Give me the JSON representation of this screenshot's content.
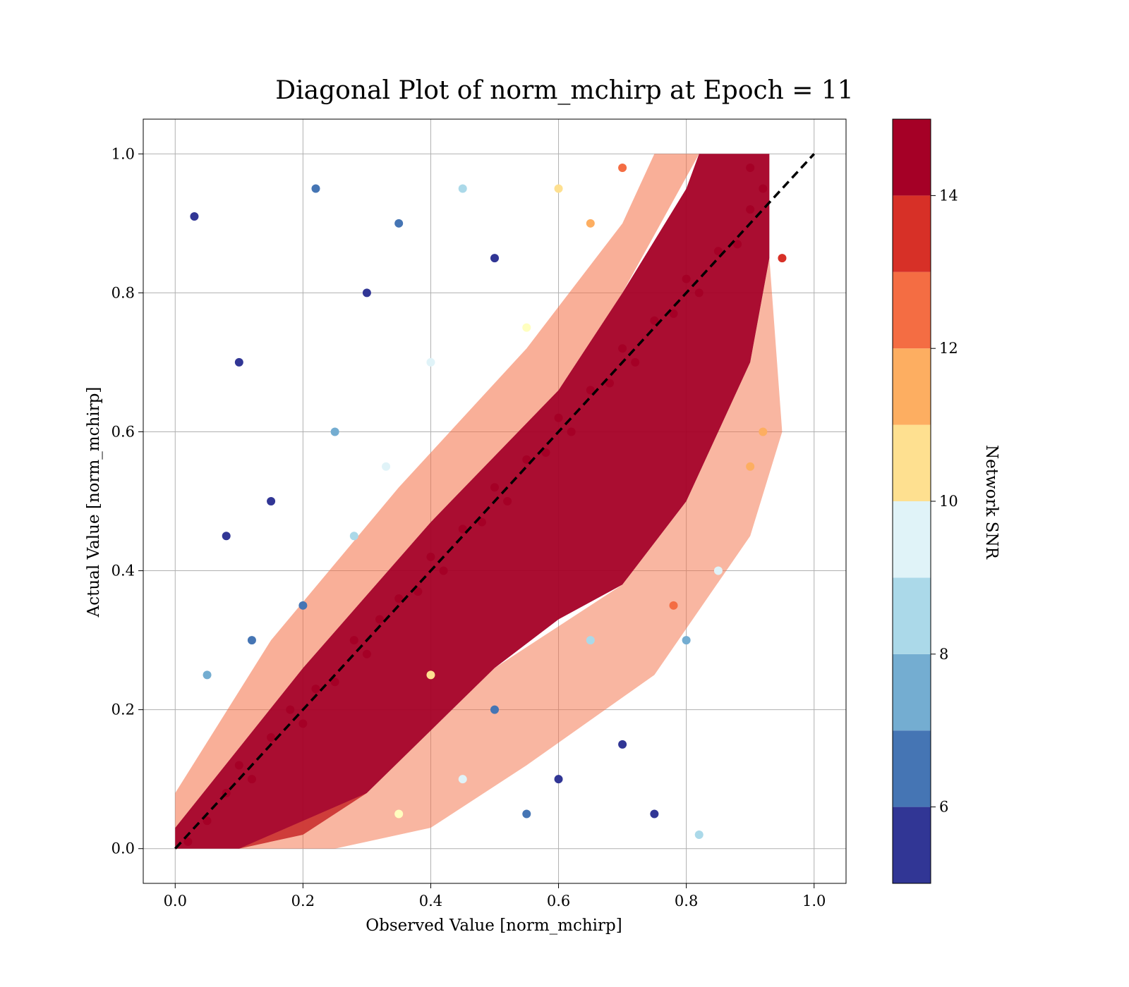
{
  "chart_data": {
    "type": "scatter",
    "title": "Diagonal Plot of norm_mchirp at Epoch = 11",
    "xlabel": "Observed Value [norm_mchirp]",
    "ylabel": "Actual Value [norm_mchirp]",
    "xlim": [
      -0.05,
      1.05
    ],
    "ylim": [
      -0.05,
      1.05
    ],
    "x_ticks": [
      0.0,
      0.2,
      0.4,
      0.6,
      0.8,
      1.0
    ],
    "y_ticks": [
      0.0,
      0.2,
      0.4,
      0.6,
      0.8,
      1.0
    ],
    "x_tick_labels": [
      "0.0",
      "0.2",
      "0.4",
      "0.6",
      "0.8",
      "1.0"
    ],
    "y_tick_labels": [
      "0.0",
      "0.2",
      "0.4",
      "0.6",
      "0.8",
      "1.0"
    ],
    "grid": true,
    "reference_line": {
      "style": "dashed",
      "color": "#000000",
      "from": [
        0.0,
        0.0
      ],
      "to": [
        1.0,
        1.0
      ]
    },
    "color_scale": {
      "label": "Network SNR",
      "min": 5,
      "max": 15,
      "ticks": [
        6,
        8,
        10,
        12,
        14
      ],
      "tick_labels": [
        "6",
        "8",
        "10",
        "12",
        "14"
      ],
      "colors": [
        "#313695",
        "#4575b4",
        "#74add1",
        "#abd9e9",
        "#e0f3f8",
        "#ffffbf",
        "#fee090",
        "#fdae61",
        "#f46d43",
        "#d73027",
        "#a50026"
      ]
    },
    "colorbar_bins": 10,
    "points": [
      [
        0.02,
        0.01,
        15
      ],
      [
        0.05,
        0.04,
        15
      ],
      [
        0.08,
        0.08,
        15
      ],
      [
        0.1,
        0.12,
        15
      ],
      [
        0.12,
        0.1,
        15
      ],
      [
        0.15,
        0.16,
        15
      ],
      [
        0.18,
        0.2,
        15
      ],
      [
        0.2,
        0.18,
        15
      ],
      [
        0.22,
        0.23,
        15
      ],
      [
        0.25,
        0.24,
        15
      ],
      [
        0.28,
        0.3,
        15
      ],
      [
        0.3,
        0.28,
        15
      ],
      [
        0.32,
        0.33,
        15
      ],
      [
        0.35,
        0.36,
        15
      ],
      [
        0.38,
        0.37,
        15
      ],
      [
        0.4,
        0.42,
        15
      ],
      [
        0.42,
        0.4,
        15
      ],
      [
        0.45,
        0.46,
        15
      ],
      [
        0.48,
        0.47,
        15
      ],
      [
        0.5,
        0.52,
        15
      ],
      [
        0.52,
        0.5,
        15
      ],
      [
        0.55,
        0.56,
        15
      ],
      [
        0.58,
        0.57,
        15
      ],
      [
        0.6,
        0.62,
        15
      ],
      [
        0.62,
        0.6,
        15
      ],
      [
        0.65,
        0.66,
        15
      ],
      [
        0.68,
        0.67,
        15
      ],
      [
        0.7,
        0.72,
        15
      ],
      [
        0.72,
        0.7,
        15
      ],
      [
        0.75,
        0.76,
        15
      ],
      [
        0.78,
        0.77,
        15
      ],
      [
        0.8,
        0.82,
        15
      ],
      [
        0.82,
        0.8,
        15
      ],
      [
        0.85,
        0.86,
        15
      ],
      [
        0.88,
        0.87,
        15
      ],
      [
        0.9,
        0.92,
        15
      ],
      [
        0.92,
        0.95,
        15
      ],
      [
        0.9,
        0.98,
        15
      ],
      [
        0.2,
        0.35,
        6
      ],
      [
        0.15,
        0.5,
        5
      ],
      [
        0.1,
        0.7,
        5
      ],
      [
        0.25,
        0.6,
        7
      ],
      [
        0.3,
        0.8,
        5
      ],
      [
        0.35,
        0.9,
        6
      ],
      [
        0.45,
        0.95,
        8
      ],
      [
        0.5,
        0.85,
        5
      ],
      [
        0.4,
        0.7,
        9
      ],
      [
        0.6,
        0.95,
        11
      ],
      [
        0.65,
        0.9,
        12
      ],
      [
        0.7,
        0.98,
        13
      ],
      [
        0.55,
        0.75,
        10
      ],
      [
        0.12,
        0.3,
        6
      ],
      [
        0.08,
        0.45,
        5
      ],
      [
        0.05,
        0.25,
        7
      ],
      [
        0.03,
        0.91,
        5
      ],
      [
        0.22,
        0.95,
        6
      ],
      [
        0.28,
        0.45,
        8
      ],
      [
        0.33,
        0.55,
        9
      ],
      [
        0.5,
        0.2,
        6
      ],
      [
        0.6,
        0.1,
        5
      ],
      [
        0.7,
        0.15,
        5
      ],
      [
        0.8,
        0.3,
        7
      ],
      [
        0.85,
        0.4,
        9
      ],
      [
        0.9,
        0.55,
        12
      ],
      [
        0.75,
        0.05,
        5
      ],
      [
        0.65,
        0.3,
        8
      ],
      [
        0.55,
        0.05,
        6
      ],
      [
        0.45,
        0.1,
        9
      ],
      [
        0.35,
        0.05,
        10
      ],
      [
        0.4,
        0.25,
        11
      ],
      [
        0.82,
        0.02,
        8
      ],
      [
        0.78,
        0.35,
        13
      ],
      [
        0.92,
        0.6,
        12
      ],
      [
        0.95,
        0.85,
        14
      ]
    ]
  }
}
